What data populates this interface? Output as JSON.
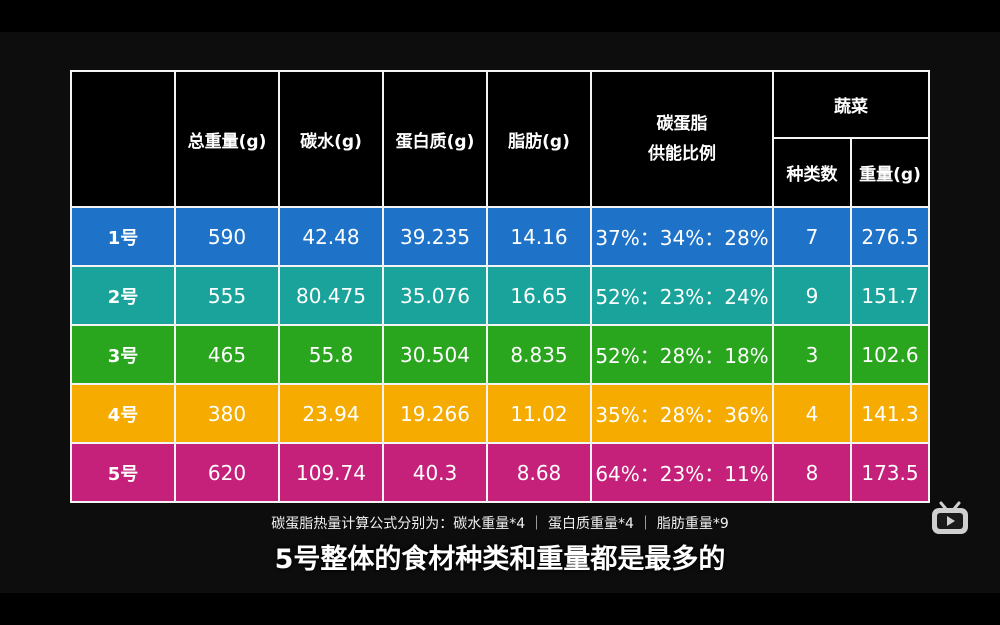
{
  "headers": {
    "total": "总重量(g)",
    "carb": "碳水(g)",
    "protein": "蛋白质(g)",
    "fat": "脂肪(g)",
    "ratio_line1": "碳蛋脂",
    "ratio_line2": "供能比例",
    "veg": "蔬菜",
    "veg_kinds": "种类数",
    "veg_weight": "重量(g)"
  },
  "rows": [
    {
      "label": "1号",
      "total": "590",
      "carb": "42.48",
      "protein": "39.235",
      "fat": "14.16",
      "ratio": "37%：34%：28%",
      "kinds": "7",
      "weight": "276.5",
      "color": "#1e73c8"
    },
    {
      "label": "2号",
      "total": "555",
      "carb": "80.475",
      "protein": "35.076",
      "fat": "16.65",
      "ratio": "52%：23%：24%",
      "kinds": "9",
      "weight": "151.7",
      "color": "#1aa39a"
    },
    {
      "label": "3号",
      "total": "465",
      "carb": "55.8",
      "protein": "30.504",
      "fat": "8.835",
      "ratio": "52%：28%：18%",
      "kinds": "3",
      "weight": "102.6",
      "color": "#29a51e"
    },
    {
      "label": "4号",
      "total": "380",
      "carb": "23.94",
      "protein": "19.266",
      "fat": "11.02",
      "ratio": "35%：28%：36%",
      "kinds": "4",
      "weight": "141.3",
      "color": "#f5ab00"
    },
    {
      "label": "5号",
      "total": "620",
      "carb": "109.74",
      "protein": "40.3",
      "fat": "8.68",
      "ratio": "64%：23%：11%",
      "kinds": "8",
      "weight": "173.5",
      "color": "#c5217a"
    }
  ],
  "captions": {
    "formula": "碳蛋脂热量计算公式分别为：碳水重量*4 ｜ 蛋白质重量*4 ｜ 脂肪重量*9",
    "subtitle": "5号整体的食材种类和重量都是最多的"
  },
  "icons": {
    "watermark": "bilibili-tv-icon"
  }
}
